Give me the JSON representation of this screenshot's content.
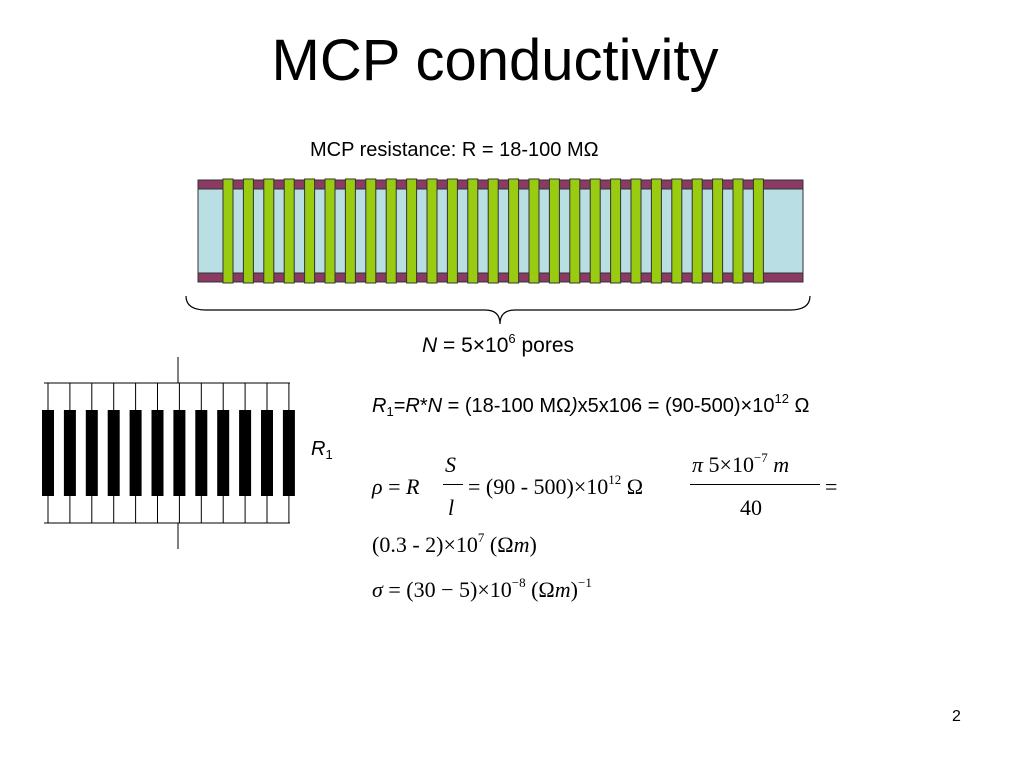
{
  "slide": {
    "title": "MCP conductivity",
    "page_number": "2"
  },
  "diagram": {
    "resistance_label": "MCP resistance: R = 18-100 MΩ",
    "pores_label": {
      "var": "N",
      "text": " = 5×10",
      "exp": "6",
      "suffix": " pores"
    },
    "r1_label": {
      "base": "R",
      "sub": "1"
    },
    "colors": {
      "plate_fill": "#b9dfe4",
      "electrode": "#8a3a63",
      "pore": "#99cc11",
      "pore_edge": "#333333"
    }
  },
  "equations": {
    "r1_line": {
      "r": "R",
      "r_sub": "1",
      "eq": "=",
      "r2": "R",
      "star": "*",
      "n": "N",
      "mid": " = (18-100 MΩ",
      "close": ")",
      "tail": "x5x106 = (90-500)×10",
      "exp": "12",
      "omega": " Ω"
    },
    "rho": {
      "lhs": "ρ",
      "eq1": " = ",
      "r": "R",
      "num": "S",
      "den": "l",
      "mid": "= (90 - 500)×10",
      "mid_exp": "12",
      "omega": " Ω",
      "num2_pi": "π",
      "num2_val": " 5×10",
      "num2_exp": "−7",
      "num2_m": " m",
      "den2": "40",
      "end": "="
    },
    "rho_result": {
      "text": "(0.3 - 2)×10",
      "exp": "7",
      "unit_open": " (Ω",
      "unit_m": "m",
      "unit_close": ")"
    },
    "sigma": {
      "lhs": "σ",
      "text": " = (30 − 5)×10",
      "exp": "−8",
      "unit_open": " (Ω",
      "unit_m": "m",
      "unit_close": ")",
      "unit_exp": "−1"
    }
  }
}
